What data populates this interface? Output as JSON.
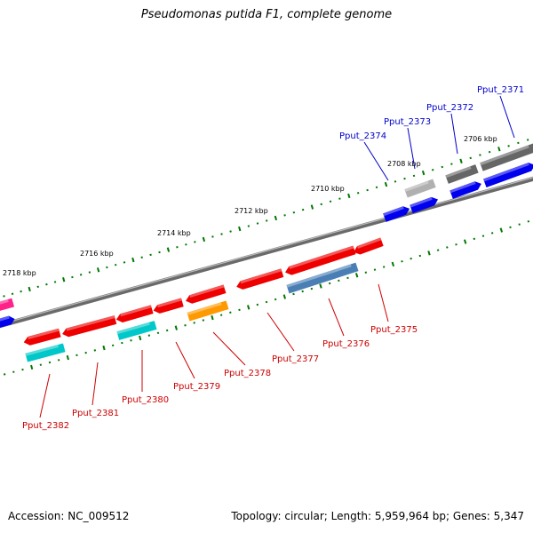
{
  "title": "Pseudomonas putida F1, complete genome",
  "footer": {
    "accession": "Accession: NC_009512",
    "stats": "Topology: circular; Length: 5,959,964 bp; Genes: 5,347"
  },
  "ruler": {
    "labels": [
      "2706 kbp",
      "2708 kbp",
      "2710 kbp",
      "2712 kbp",
      "2714 kbp",
      "2716 kbp",
      "2718 kbp"
    ]
  },
  "genes": {
    "forward": [
      "Pput_2371",
      "Pput_2372",
      "Pput_2373",
      "Pput_2374"
    ],
    "reverse": [
      "Pput_2375",
      "Pput_2376",
      "Pput_2377",
      "Pput_2378",
      "Pput_2379",
      "Pput_2380",
      "Pput_2381",
      "Pput_2382"
    ]
  },
  "colors": {
    "forward_label": "#0000cc",
    "reverse_label": "#cc0000",
    "tick": "#007700",
    "backbone": "#808080",
    "forward_gene": "#0000ee",
    "reverse_gene": "#ee0000",
    "grey_gene": "#666666",
    "light_grey_gene": "#b0b0b0",
    "steel_gene": "#4a7fb5",
    "orange_gene": "#ff9900",
    "cyan_gene": "#00c8c8",
    "pink_gene": "#ff2288"
  }
}
